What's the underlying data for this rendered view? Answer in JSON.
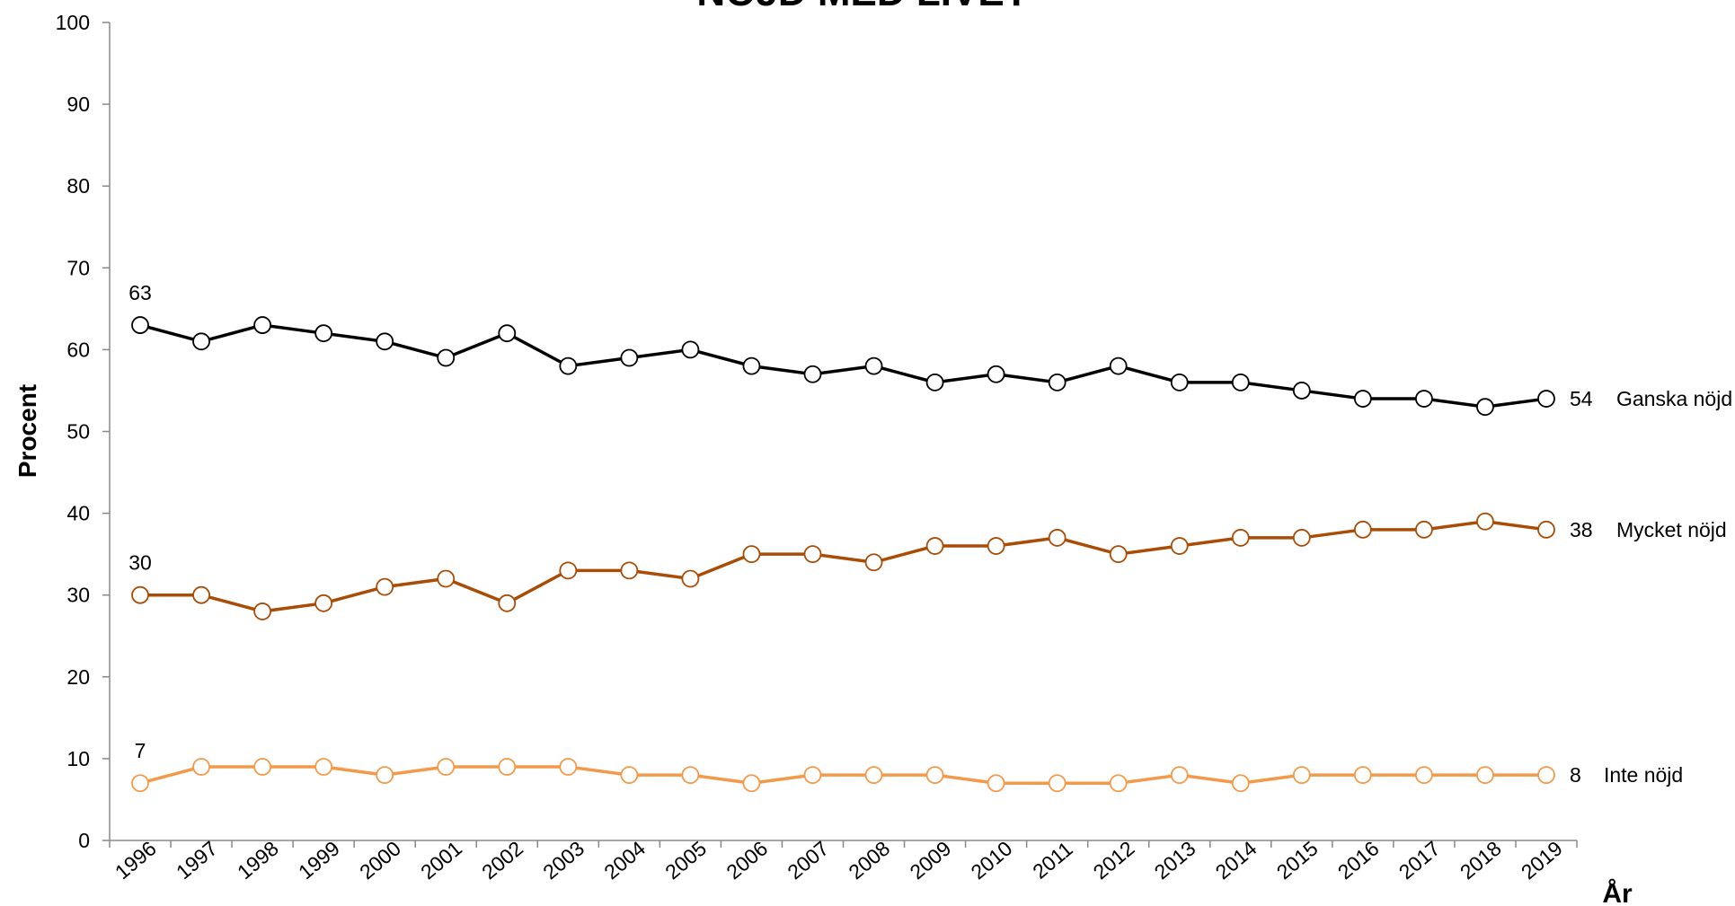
{
  "chart_data": {
    "type": "line",
    "title": "NÖJD MED LIVET",
    "xlabel": "År",
    "ylabel": "Procent",
    "categories": [
      "1996",
      "1997",
      "1998",
      "1999",
      "2000",
      "2001",
      "2002",
      "2003",
      "2004",
      "2005",
      "2006",
      "2007",
      "2008",
      "2009",
      "2010",
      "2011",
      "2012",
      "2013",
      "2014",
      "2015",
      "2016",
      "2017",
      "2018",
      "2019"
    ],
    "series": [
      {
        "name": "Ganska nöjd",
        "color": "#000000",
        "values": [
          63,
          61,
          63,
          62,
          61,
          59,
          62,
          58,
          59,
          60,
          58,
          57,
          58,
          56,
          57,
          56,
          58,
          56,
          56,
          55,
          54,
          54,
          53,
          54
        ]
      },
      {
        "name": "Mycket nöjd",
        "color": "#a84c06",
        "values": [
          30,
          30,
          28,
          29,
          31,
          32,
          29,
          33,
          33,
          32,
          35,
          35,
          34,
          36,
          36,
          37,
          35,
          36,
          37,
          37,
          38,
          38,
          39,
          38
        ]
      },
      {
        "name": "Inte nöjd",
        "color": "#f39a4a",
        "values": [
          7,
          9,
          9,
          9,
          8,
          9,
          9,
          9,
          8,
          8,
          7,
          8,
          8,
          8,
          7,
          7,
          7,
          8,
          7,
          8,
          8,
          8,
          8,
          8
        ]
      }
    ],
    "ylim": [
      0,
      100
    ],
    "yticks": [
      0,
      10,
      20,
      30,
      40,
      50,
      60,
      70,
      80,
      90,
      100
    ]
  }
}
